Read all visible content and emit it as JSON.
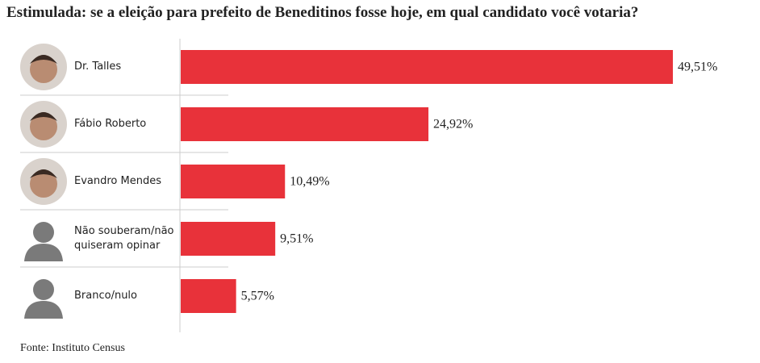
{
  "chart_data": {
    "type": "bar",
    "orientation": "horizontal",
    "title": "Estimulada: se a eleição para prefeito de Beneditinos fosse hoje, em qual candidato você votaria?",
    "categories": [
      "Dr. Talles",
      "Fábio Roberto",
      "Evandro Mendes",
      "Não souberam/não quiseram opinar",
      "Branco/nulo"
    ],
    "values": [
      49.51,
      24.92,
      10.49,
      9.51,
      5.57
    ],
    "value_labels": [
      "49,51%",
      "24,92%",
      "10,49%",
      "9,51%",
      "5,57%"
    ],
    "color": "#e8323a",
    "source": "Fonte: Instituto Census"
  }
}
